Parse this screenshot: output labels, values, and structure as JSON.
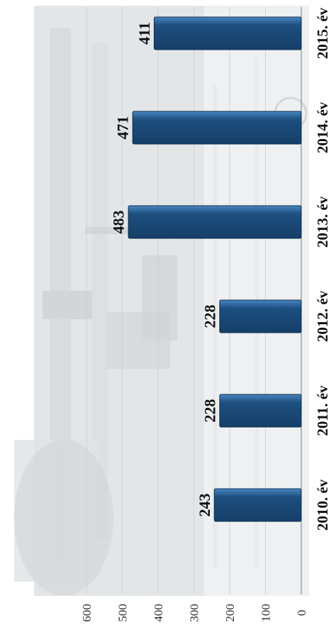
{
  "chart_data": {
    "type": "bar",
    "orientation": "rotated-90",
    "categories": [
      "2010. év",
      "2011. év",
      "2012. év",
      "2013. év",
      "2014. év",
      "2015. év"
    ],
    "values": [
      243,
      228,
      228,
      483,
      471,
      411
    ],
    "data_labels": [
      "243",
      "228",
      "228",
      "483",
      "471",
      "411"
    ],
    "value_axis_ticks": [
      "0",
      "100",
      "200",
      "300",
      "400",
      "500",
      "600"
    ],
    "ylim": [
      0,
      600
    ],
    "grid": true,
    "bar_color": "#1d4f80",
    "bar_highlight_color": "#4a86c0",
    "title": "",
    "xlabel": "",
    "ylabel": ""
  }
}
